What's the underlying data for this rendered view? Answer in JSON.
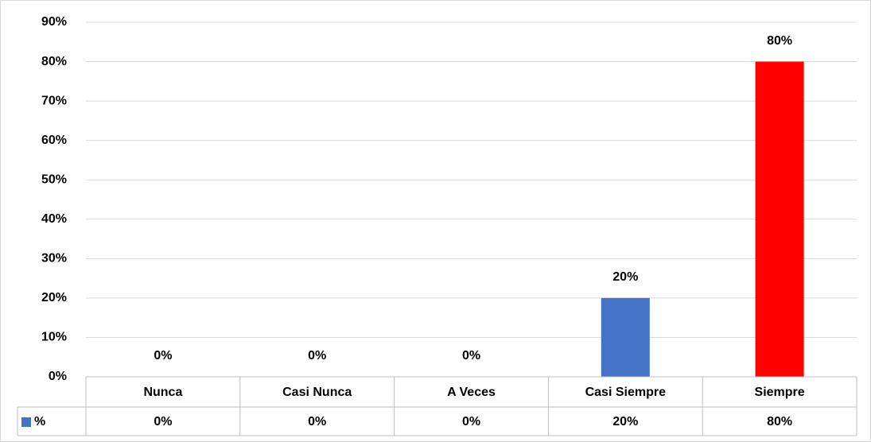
{
  "chart_data": {
    "type": "bar",
    "categories": [
      "Nunca",
      "Casi Nunca",
      "A Veces",
      "Casi Siempre",
      "Siempre"
    ],
    "series": [
      {
        "name": "%",
        "color": "#4472c4",
        "colors": [
          "#4472c4",
          "#4472c4",
          "#4472c4",
          "#4472c4",
          "#ff0000"
        ],
        "values": [
          0,
          0,
          0,
          20,
          80
        ],
        "value_labels": [
          "0%",
          "0%",
          "0%",
          "20%",
          "80%"
        ]
      }
    ],
    "ylim": [
      0,
      90
    ],
    "yticks": [
      {
        "value": 0,
        "label": "0%"
      },
      {
        "value": 10,
        "label": "10%"
      },
      {
        "value": 20,
        "label": "20%"
      },
      {
        "value": 30,
        "label": "30%"
      },
      {
        "value": 40,
        "label": "40%"
      },
      {
        "value": 50,
        "label": "50%"
      },
      {
        "value": 60,
        "label": "60%"
      },
      {
        "value": 70,
        "label": "70%"
      },
      {
        "value": 80,
        "label": "80%"
      },
      {
        "value": 90,
        "label": "90%"
      }
    ],
    "grid": true,
    "data_table": true
  }
}
